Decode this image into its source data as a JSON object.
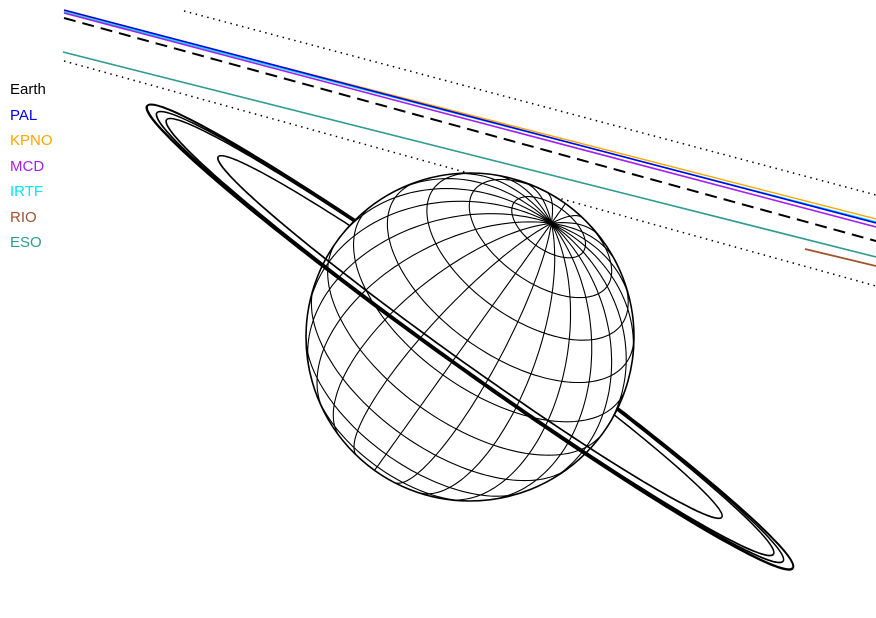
{
  "legend": [
    {
      "label": "Earth",
      "color": "#000000"
    },
    {
      "label": "PAL",
      "color": "#0000ee"
    },
    {
      "label": "KPNO",
      "color": "#ffa500"
    },
    {
      "label": "MCD",
      "color": "#a020f0"
    },
    {
      "label": "IRTF",
      "color": "#00e5ee"
    },
    {
      "label": "RIO",
      "color": "#a0522d"
    },
    {
      "label": "ESO",
      "color": "#2e9b8f"
    }
  ]
}
